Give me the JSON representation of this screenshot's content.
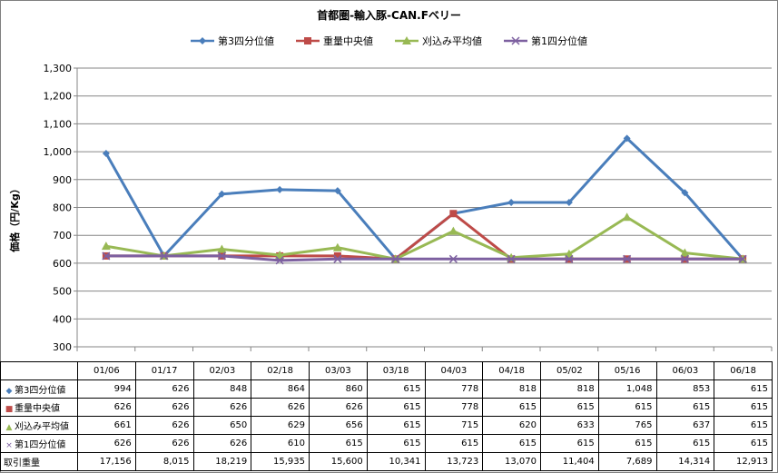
{
  "chart_data": {
    "type": "line",
    "title": "首都圏-輸入豚-CAN.Fベリー",
    "ylabel": "価格（円/Kg）",
    "ylim": [
      300,
      1300
    ],
    "yticks": [
      "300",
      "400",
      "500",
      "600",
      "700",
      "800",
      "900",
      "1,000",
      "1,100",
      "1,200",
      "1,300"
    ],
    "categories": [
      "01/06",
      "01/17",
      "02/03",
      "02/18",
      "03/03",
      "03/18",
      "04/03",
      "04/18",
      "05/02",
      "05/16",
      "06/03",
      "06/18"
    ],
    "grid": true,
    "legend": "top",
    "series": [
      {
        "name": "第3四分位値",
        "color": "#4a7ebb",
        "marker": "diamond",
        "marker_glyph": "◆",
        "values": [
          994,
          626,
          848,
          864,
          860,
          615,
          778,
          818,
          818,
          1048,
          853,
          615
        ],
        "labels": [
          "994",
          "626",
          "848",
          "864",
          "860",
          "615",
          "778",
          "818",
          "818",
          "1,048",
          "853",
          "615"
        ]
      },
      {
        "name": "重量中央値",
        "color": "#be4b48",
        "marker": "square",
        "marker_glyph": "■",
        "values": [
          626,
          626,
          626,
          626,
          626,
          615,
          778,
          615,
          615,
          615,
          615,
          615
        ],
        "labels": [
          "626",
          "626",
          "626",
          "626",
          "626",
          "615",
          "778",
          "615",
          "615",
          "615",
          "615",
          "615"
        ]
      },
      {
        "name": "刈込み平均値",
        "color": "#98b954",
        "marker": "triangle",
        "marker_glyph": "▲",
        "values": [
          661,
          626,
          650,
          629,
          656,
          615,
          715,
          620,
          633,
          765,
          637,
          615
        ],
        "labels": [
          "661",
          "626",
          "650",
          "629",
          "656",
          "615",
          "715",
          "620",
          "633",
          "765",
          "637",
          "615"
        ]
      },
      {
        "name": "第1四分位値",
        "color": "#7d60a0",
        "marker": "x",
        "marker_glyph": "×",
        "values": [
          626,
          626,
          626,
          610,
          615,
          615,
          615,
          615,
          615,
          615,
          615,
          615
        ],
        "labels": [
          "626",
          "626",
          "626",
          "610",
          "615",
          "615",
          "615",
          "615",
          "615",
          "615",
          "615",
          "615"
        ]
      }
    ],
    "table_extra_rows": [
      {
        "name": "取引重量",
        "labels": [
          "17,156",
          "8,015",
          "18,219",
          "15,935",
          "15,600",
          "10,341",
          "13,723",
          "13,070",
          "11,404",
          "7,689",
          "14,314",
          "12,913"
        ]
      }
    ]
  }
}
